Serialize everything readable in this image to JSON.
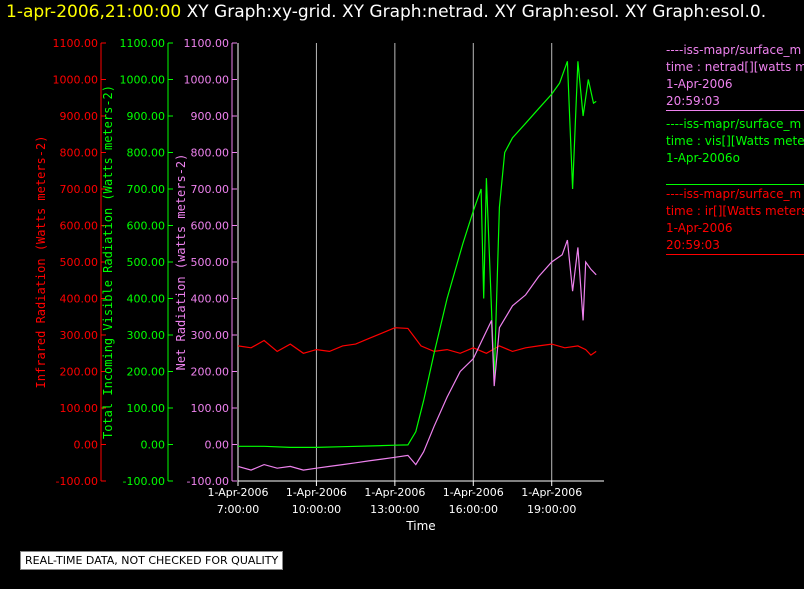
{
  "header": {
    "timestamp": "1-apr-2006,21:00:00",
    "graph_list": "XY Graph:xy-grid.  XY Graph:netrad.  XY Graph:esol.  XY Graph:esol.0."
  },
  "legend": [
    {
      "source": "----iss-mapr/surface_m",
      "variable": "time : netrad[][watts me",
      "date": "1-Apr-2006",
      "time": "20:59:03",
      "color": "#ee82ee"
    },
    {
      "source": "----iss-mapr/surface_m",
      "variable": "time : vis[][Watts mete",
      "date": "1-Apr-2006o",
      "time": "",
      "color": "#00ff00"
    },
    {
      "source": "----iss-mapr/surface_m",
      "variable": "time : ir[][Watts meters",
      "date": "1-Apr-2006",
      "time": "20:59:03",
      "color": "#ff0000"
    }
  ],
  "footer_note": "REAL-TIME DATA, NOT CHECKED FOR QUALITY",
  "chart_data": {
    "type": "line",
    "xlabel": "Time",
    "x_ticks": [
      {
        "date": "1-Apr-2006",
        "time": "7:00:00"
      },
      {
        "date": "1-Apr-2006",
        "time": "10:00:00"
      },
      {
        "date": "1-Apr-2006",
        "time": "13:00:00"
      },
      {
        "date": "1-Apr-2006",
        "time": "16:00:00"
      },
      {
        "date": "1-Apr-2006",
        "time": "19:00:00"
      }
    ],
    "x_tick_hours": [
      7,
      10,
      13,
      16,
      19
    ],
    "xlim_hours": [
      7,
      21
    ],
    "grid": true,
    "axes": [
      {
        "label": "Infrared Radiation (Watts meters-2)",
        "color": "#ff0000",
        "ylim": [
          -100,
          1100
        ],
        "ticks": [
          "-100.00",
          "0.00",
          "100.00",
          "200.00",
          "300.00",
          "400.00",
          "500.00",
          "600.00",
          "700.00",
          "800.00",
          "900.00",
          "1000.00",
          "1100.00"
        ]
      },
      {
        "label": "Total Incoming Visible Radiation (Watts meters-2)",
        "color": "#00ff00",
        "ylim": [
          -100,
          1100
        ],
        "ticks": [
          "-100.00",
          "0.00",
          "100.00",
          "200.00",
          "300.00",
          "400.00",
          "500.00",
          "600.00",
          "700.00",
          "800.00",
          "900.00",
          "1000.00",
          "1100.00"
        ]
      },
      {
        "label": "Net Radiation (watts meters-2)",
        "color": "#ee82ee",
        "ylim": [
          -100,
          1100
        ],
        "ticks": [
          "-100.00",
          "0.00",
          "100.00",
          "200.00",
          "300.00",
          "400.00",
          "500.00",
          "600.00",
          "700.00",
          "800.00",
          "900.00",
          "1000.00",
          "1100.00"
        ]
      }
    ],
    "series": [
      {
        "color": "#ff0000",
        "points": [
          [
            7,
            270
          ],
          [
            7.5,
            265
          ],
          [
            8,
            285
          ],
          [
            8.5,
            255
          ],
          [
            9,
            275
          ],
          [
            9.5,
            250
          ],
          [
            10,
            260
          ],
          [
            10.5,
            255
          ],
          [
            11,
            270
          ],
          [
            11.5,
            275
          ],
          [
            12,
            290
          ],
          [
            12.5,
            305
          ],
          [
            13,
            320
          ],
          [
            13.5,
            318
          ],
          [
            14,
            270
          ],
          [
            14.5,
            255
          ],
          [
            15,
            260
          ],
          [
            15.5,
            250
          ],
          [
            16,
            265
          ],
          [
            16.5,
            250
          ],
          [
            17,
            270
          ],
          [
            17.5,
            255
          ],
          [
            18,
            265
          ],
          [
            18.5,
            270
          ],
          [
            19,
            275
          ],
          [
            19.5,
            265
          ],
          [
            20,
            270
          ],
          [
            20.3,
            260
          ],
          [
            20.5,
            245
          ],
          [
            20.7,
            255
          ]
        ]
      },
      {
        "color": "#00ff00",
        "points": [
          [
            7,
            -5
          ],
          [
            8,
            -5
          ],
          [
            9,
            -8
          ],
          [
            10,
            -8
          ],
          [
            11,
            -6
          ],
          [
            12,
            -4
          ],
          [
            13,
            -2
          ],
          [
            13.5,
            -1
          ],
          [
            13.8,
            35
          ],
          [
            14.1,
            120
          ],
          [
            14.5,
            250
          ],
          [
            15,
            400
          ],
          [
            15.6,
            550
          ],
          [
            16,
            640
          ],
          [
            16.3,
            700
          ],
          [
            16.4,
            400
          ],
          [
            16.5,
            730
          ],
          [
            16.8,
            180
          ],
          [
            17.0,
            650
          ],
          [
            17.2,
            800
          ],
          [
            17.5,
            840
          ],
          [
            18,
            880
          ],
          [
            18.5,
            920
          ],
          [
            19,
            960
          ],
          [
            19.3,
            990
          ],
          [
            19.6,
            1050
          ],
          [
            19.8,
            700
          ],
          [
            20,
            1050
          ],
          [
            20.2,
            900
          ],
          [
            20.4,
            1000
          ],
          [
            20.6,
            935
          ],
          [
            20.7,
            940
          ]
        ]
      },
      {
        "color": "#ee82ee",
        "points": [
          [
            7,
            -60
          ],
          [
            7.5,
            -70
          ],
          [
            8,
            -55
          ],
          [
            8.5,
            -65
          ],
          [
            9,
            -60
          ],
          [
            9.5,
            -70
          ],
          [
            10,
            -65
          ],
          [
            10.5,
            -60
          ],
          [
            11,
            -55
          ],
          [
            11.5,
            -50
          ],
          [
            12,
            -45
          ],
          [
            12.5,
            -40
          ],
          [
            13,
            -35
          ],
          [
            13.5,
            -30
          ],
          [
            13.8,
            -55
          ],
          [
            14.1,
            -20
          ],
          [
            14.5,
            50
          ],
          [
            15,
            130
          ],
          [
            15.5,
            200
          ],
          [
            16,
            235
          ],
          [
            16.3,
            280
          ],
          [
            16.7,
            340
          ],
          [
            16.8,
            160
          ],
          [
            17.0,
            320
          ],
          [
            17.5,
            380
          ],
          [
            18,
            410
          ],
          [
            18.5,
            460
          ],
          [
            19,
            500
          ],
          [
            19.4,
            520
          ],
          [
            19.6,
            560
          ],
          [
            19.8,
            420
          ],
          [
            20,
            540
          ],
          [
            20.2,
            340
          ],
          [
            20.3,
            500
          ],
          [
            20.5,
            480
          ],
          [
            20.7,
            465
          ]
        ]
      }
    ]
  }
}
